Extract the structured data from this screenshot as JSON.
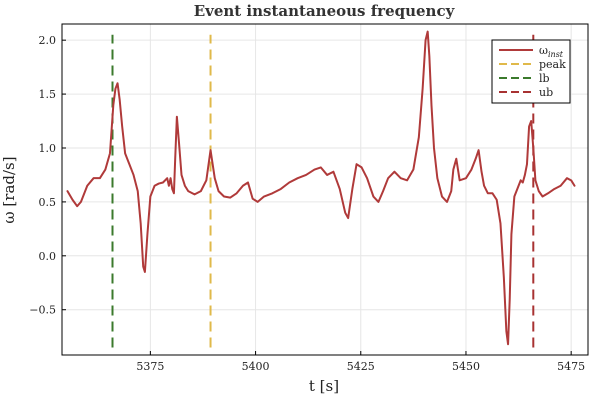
{
  "chart_data": {
    "type": "line",
    "title": "Event instantaneous frequency",
    "xlabel": "t [s]",
    "ylabel": "ω [rad/s]",
    "xlim": [
      5354,
      5479
    ],
    "ylim": [
      -0.92,
      2.15
    ],
    "xticks": [
      5375,
      5400,
      5425,
      5450,
      5475
    ],
    "yticks": [
      -0.5,
      0.0,
      0.5,
      1.0,
      1.5,
      2.0
    ],
    "xtick_labels": [
      "5375",
      "5400",
      "5425",
      "5450",
      "5475"
    ],
    "ytick_labels": [
      "−0.5",
      "0.0",
      "0.5",
      "1.0",
      "1.5",
      "2.0"
    ],
    "grid": true,
    "legend_position": "top-right",
    "series": [
      {
        "name": "ω_inst",
        "legend_main": "ω",
        "legend_sub": "inst",
        "style": "solid",
        "color": "#b03a3a",
        "x": [
          5355.3,
          5356.5,
          5357.6,
          5358.5,
          5360.0,
          5361.5,
          5363.0,
          5364.3,
          5365.4,
          5366.2,
          5366.7,
          5367.2,
          5367.7,
          5368.3,
          5369.0,
          5370.0,
          5371.0,
          5372.0,
          5372.7,
          5373.3,
          5373.7,
          5374.3,
          5375.0,
          5376.0,
          5377.0,
          5378.0,
          5379.0,
          5379.4,
          5379.8,
          5380.2,
          5380.6,
          5380.9,
          5381.3,
          5381.8,
          5382.4,
          5383.2,
          5384.0,
          5385.5,
          5387.0,
          5388.3,
          5389.3,
          5390.3,
          5391.2,
          5392.5,
          5394.0,
          5395.5,
          5397.0,
          5398.2,
          5399.3,
          5400.5,
          5402.0,
          5404.0,
          5406.0,
          5408.0,
          5410.0,
          5412.0,
          5414.0,
          5415.5,
          5417.0,
          5418.5,
          5420.0,
          5421.3,
          5422.0,
          5423.0,
          5424.0,
          5425.2,
          5426.5,
          5428.0,
          5429.2,
          5430.3,
          5431.5,
          5433.0,
          5434.5,
          5436.0,
          5437.5,
          5438.8,
          5439.7,
          5440.4,
          5440.9,
          5441.3,
          5441.8,
          5442.4,
          5443.2,
          5444.3,
          5445.5,
          5446.5,
          5447.0,
          5447.7,
          5448.5,
          5450.0,
          5451.3,
          5452.3,
          5453.0,
          5453.7,
          5454.3,
          5455.2,
          5456.3,
          5457.3,
          5458.2,
          5459.0,
          5459.6,
          5460.0,
          5460.4,
          5460.8,
          5461.5,
          5462.5,
          5463.0,
          5463.5,
          5464.0,
          5464.5,
          5465.0,
          5465.5,
          5466.0,
          5466.5,
          5467.3,
          5468.2,
          5469.5,
          5471.0,
          5472.5,
          5474.0,
          5475.0,
          5475.8
        ],
        "y": [
          0.6,
          0.52,
          0.46,
          0.5,
          0.65,
          0.72,
          0.72,
          0.8,
          0.95,
          1.4,
          1.55,
          1.6,
          1.45,
          1.2,
          0.95,
          0.85,
          0.75,
          0.6,
          0.3,
          -0.1,
          -0.15,
          0.2,
          0.55,
          0.65,
          0.67,
          0.68,
          0.72,
          0.65,
          0.72,
          0.62,
          0.58,
          0.9,
          1.29,
          1.05,
          0.75,
          0.65,
          0.6,
          0.57,
          0.6,
          0.7,
          0.98,
          0.72,
          0.6,
          0.55,
          0.54,
          0.58,
          0.65,
          0.68,
          0.53,
          0.5,
          0.55,
          0.58,
          0.62,
          0.68,
          0.72,
          0.75,
          0.8,
          0.82,
          0.75,
          0.78,
          0.62,
          0.4,
          0.35,
          0.62,
          0.85,
          0.82,
          0.72,
          0.55,
          0.5,
          0.6,
          0.72,
          0.78,
          0.72,
          0.7,
          0.8,
          1.1,
          1.55,
          2.0,
          2.08,
          1.85,
          1.4,
          1.0,
          0.72,
          0.55,
          0.5,
          0.6,
          0.8,
          0.9,
          0.7,
          0.72,
          0.8,
          0.9,
          0.98,
          0.78,
          0.65,
          0.58,
          0.58,
          0.52,
          0.3,
          -0.2,
          -0.7,
          -0.82,
          -0.4,
          0.2,
          0.55,
          0.65,
          0.7,
          0.68,
          0.75,
          0.85,
          1.2,
          1.25,
          1.0,
          0.7,
          0.6,
          0.55,
          0.58,
          0.62,
          0.65,
          0.72,
          0.7,
          0.65
        ]
      },
      {
        "name": "peak",
        "style": "dashed",
        "color": "#e0b94a",
        "x": [
          5389.3,
          5389.3
        ],
        "y": [
          -0.85,
          2.05
        ]
      },
      {
        "name": "lb",
        "style": "dashed",
        "color": "#3b7a2c",
        "x": [
          5366.0,
          5366.0
        ],
        "y": [
          -0.85,
          2.05
        ]
      },
      {
        "name": "ub",
        "style": "dashed",
        "color": "#a83232",
        "x": [
          5466.0,
          5466.0
        ],
        "y": [
          -0.85,
          2.05
        ]
      }
    ]
  }
}
